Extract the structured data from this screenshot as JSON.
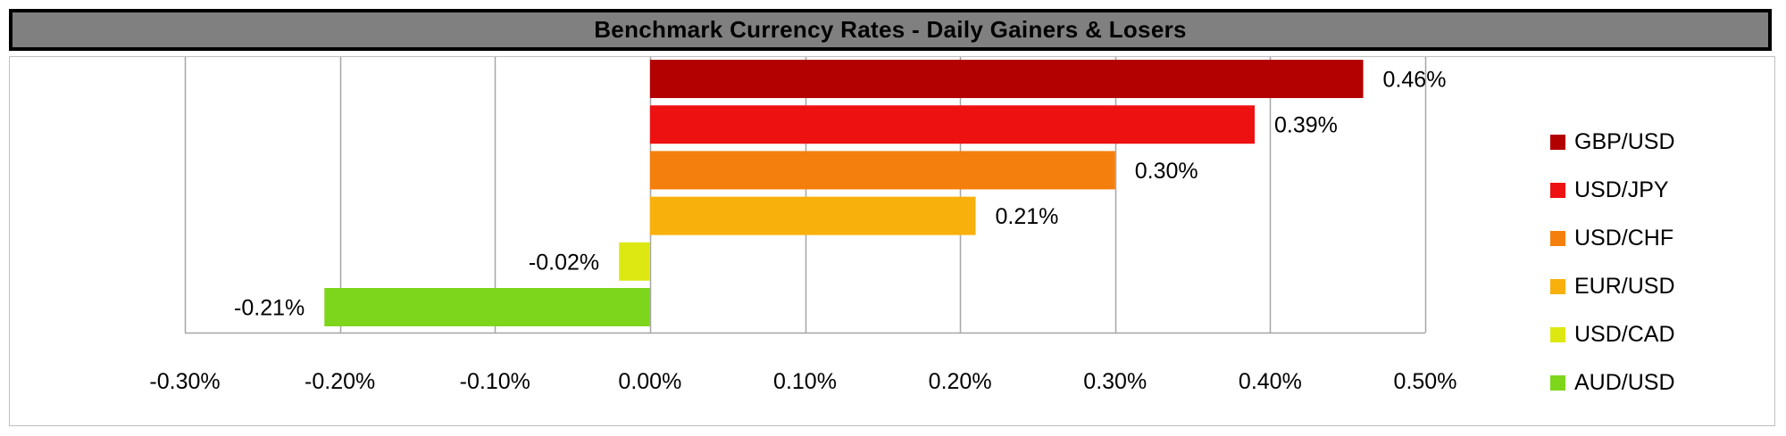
{
  "chart_data": {
    "type": "bar",
    "orientation": "horizontal",
    "title": "Benchmark Currency Rates - Daily Gainers & Losers",
    "categories": [
      "GBP/USD",
      "USD/JPY",
      "USD/CHF",
      "EUR/USD",
      "USD/CAD",
      "AUD/USD"
    ],
    "values": [
      0.46,
      0.39,
      0.3,
      0.21,
      -0.02,
      -0.21
    ],
    "data_labels": [
      "0.46%",
      "0.39%",
      "0.30%",
      "0.21%",
      "-0.02%",
      "-0.21%"
    ],
    "colors": [
      "#b30000",
      "#ee1111",
      "#f57f0c",
      "#f8b00c",
      "#dde812",
      "#7dd51c"
    ],
    "xlim": [
      -0.3,
      0.5
    ],
    "xticks": [
      -0.3,
      -0.2,
      -0.1,
      0.0,
      0.1,
      0.2,
      0.3,
      0.4,
      0.5
    ],
    "xtick_labels": [
      "-0.30%",
      "-0.20%",
      "-0.10%",
      "0.00%",
      "0.10%",
      "0.20%",
      "0.30%",
      "0.40%",
      "0.50%"
    ],
    "grid": true,
    "legend_position": "right",
    "xlabel": "",
    "ylabel": ""
  }
}
